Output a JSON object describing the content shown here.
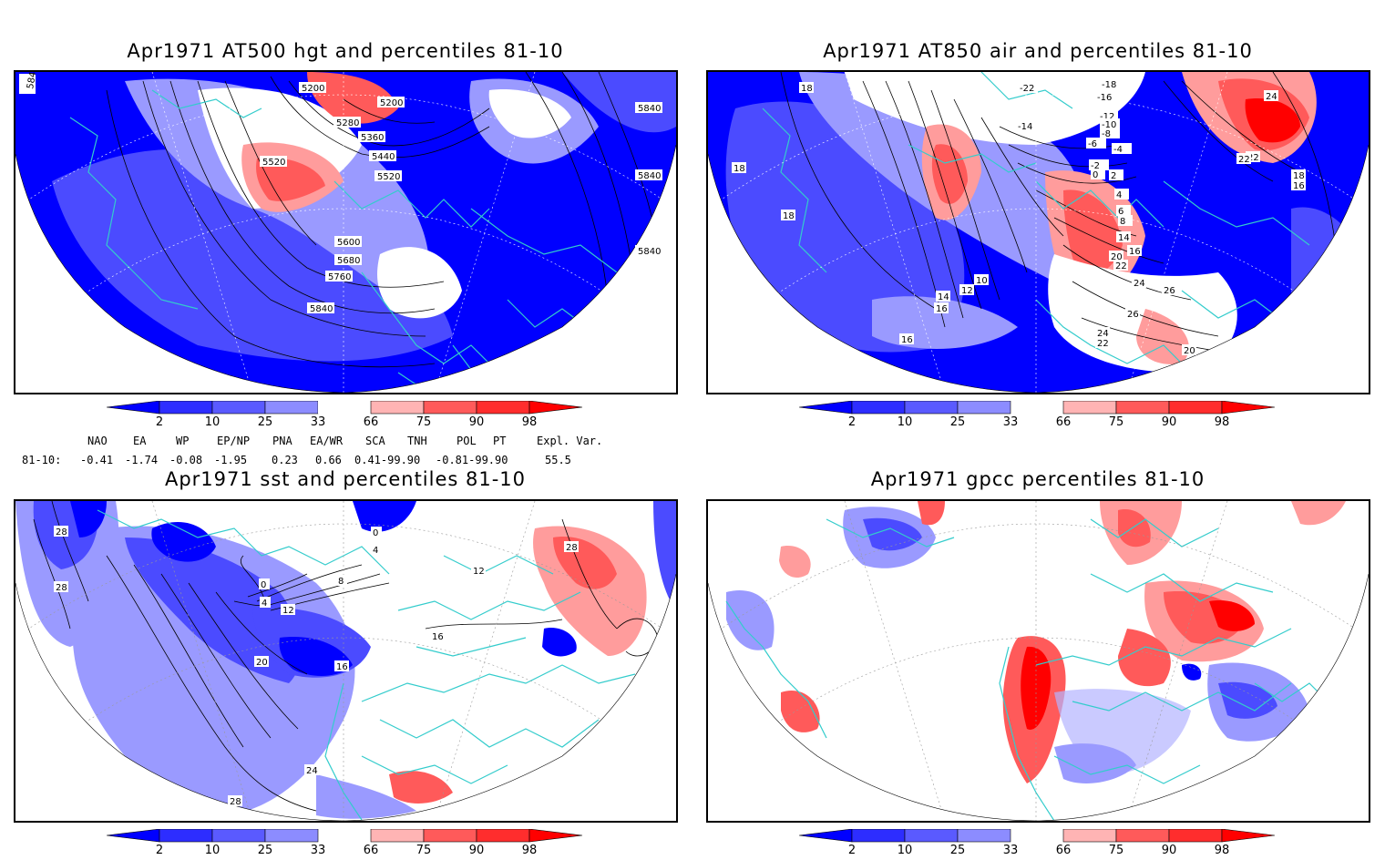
{
  "panels": {
    "hgt": {
      "title": "Apr1971 AT500 hgt and percentiles 81-10",
      "contour_labels": [
        "5840",
        "5840",
        "5840",
        "5840",
        "5200",
        "5200",
        "5280",
        "5360",
        "5440",
        "5520",
        "5520",
        "5600",
        "5680",
        "5760",
        "5840"
      ]
    },
    "air": {
      "title": "Apr1971 AT850 air and percentiles 81-10",
      "contour_labels": [
        "18",
        "18",
        "18",
        "16",
        "16",
        "14",
        "12",
        "10",
        "-22",
        "-16",
        "-18",
        "-14",
        "-12",
        "-10",
        "-8",
        "-6",
        "-4",
        "-2",
        "0",
        "2",
        "4",
        "6",
        "8",
        "14",
        "16",
        "20",
        "22",
        "24",
        "26",
        "24",
        "22",
        "20",
        "26",
        "22",
        "22",
        "24",
        "18",
        "16"
      ]
    },
    "sst": {
      "title": "Apr1971 sst and percentiles 81-10",
      "contour_labels": [
        "28",
        "28",
        "28",
        "20",
        "16",
        "24",
        "28",
        "0",
        "4",
        "8",
        "12",
        "4",
        "0",
        "16",
        "12"
      ]
    },
    "gpcc": {
      "title": "Apr1971 gpcc percentiles 81-10"
    }
  },
  "colorbar": {
    "labels": [
      "2",
      "10",
      "25",
      "33",
      "66",
      "75",
      "90",
      "98"
    ],
    "colors": [
      "#0000ff",
      "#2d2dff",
      "#5a5aff",
      "#8c8cff",
      "#b4b4ff",
      "#ffffff",
      "#ffb4b4",
      "#ff8c8c",
      "#ff5a5a",
      "#ff2d2d",
      "#ff0000"
    ]
  },
  "indices": {
    "headers": [
      "NAO",
      "EA",
      "WP",
      "EP/NP",
      "PNA",
      "EA/WR",
      "SCA",
      "TNH",
      "POL",
      "PT",
      "Expl. Var."
    ],
    "row_label": "81-10:",
    "values": [
      "-0.41",
      "-1.74",
      "-0.08",
      "-1.95",
      "0.23",
      "0.66",
      "0.41-99.90",
      "-0.81-99.90",
      "55.5"
    ]
  },
  "colors": {
    "coast": "#33cccc",
    "contour": "#000000",
    "blue_strong": "#0000ff",
    "blue_mid": "#4b4bff",
    "blue_light": "#9a9aff",
    "red_light": "#ff9c9c",
    "red_mid": "#ff5a5a",
    "red_strong": "#ff0000"
  }
}
